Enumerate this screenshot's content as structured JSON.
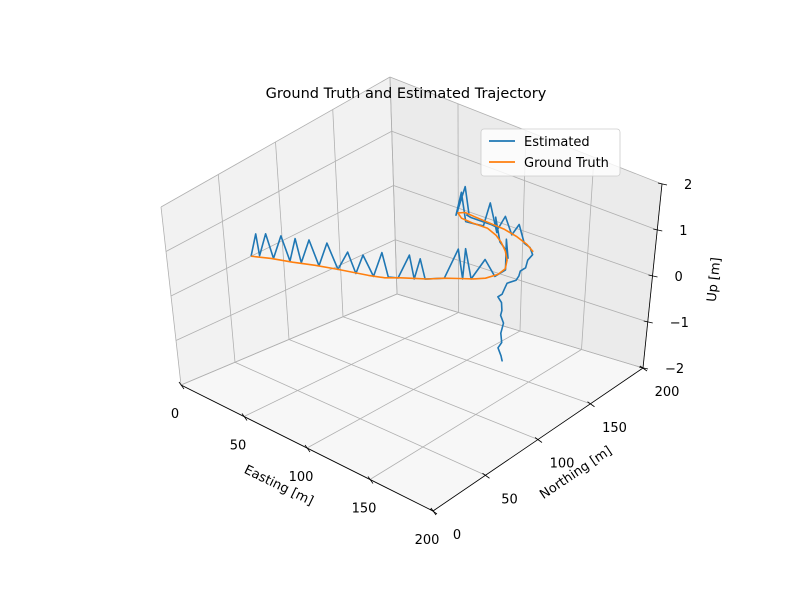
{
  "chart_data": {
    "type": "line",
    "projection": "3d",
    "title": "Ground Truth and Estimated Trajectory",
    "xlabel": "Easting [m]",
    "ylabel": "Northing [m]",
    "zlabel": "Up [m]",
    "xlim": [
      0,
      200
    ],
    "ylim": [
      0,
      200
    ],
    "zlim": [
      -2,
      2
    ],
    "x_ticks": [
      "0",
      "50",
      "100",
      "150",
      "200"
    ],
    "y_ticks": [
      "0",
      "50",
      "100",
      "150",
      "200"
    ],
    "z_ticks": [
      "−2",
      "−1",
      "0",
      "1",
      "2"
    ],
    "grid": true,
    "legend_position": "upper right",
    "series": [
      {
        "name": "Estimated",
        "color": "#1f77b4",
        "points": [
          [
            0,
            72,
            0
          ],
          [
            4,
            73,
            0.5
          ],
          [
            3,
            76,
            0
          ],
          [
            8,
            77,
            0.5
          ],
          [
            11,
            79,
            0
          ],
          [
            16,
            81,
            0.5
          ],
          [
            20,
            83,
            0
          ],
          [
            24,
            84,
            0.5
          ],
          [
            26,
            86,
            0
          ],
          [
            31,
            88,
            0.5
          ],
          [
            36,
            90,
            0
          ],
          [
            41,
            92,
            0.5
          ],
          [
            47,
            94,
            0
          ],
          [
            53,
            96,
            0.4
          ],
          [
            58,
            97,
            0
          ],
          [
            62,
            99,
            0.4
          ],
          [
            68,
            101,
            0
          ],
          [
            72,
            104,
            0.5
          ],
          [
            75,
            106,
            0
          ],
          [
            80,
            109,
            0
          ],
          [
            86,
            112,
            0.5
          ],
          [
            88,
            114,
            0
          ],
          [
            90,
            117,
            0.4
          ],
          [
            93,
            118,
            0
          ],
          [
            101,
            126,
            0
          ],
          [
            107,
            131,
            0.6
          ],
          [
            110,
            132,
            0
          ],
          [
            110,
            134,
            0.6
          ],
          [
            114,
            135,
            0
          ],
          [
            120,
            140,
            0.4
          ],
          [
            123,
            146,
            0
          ],
          [
            123,
            156,
            0
          ],
          [
            118,
            162,
            0.5
          ],
          [
            115,
            168,
            0
          ],
          [
            109,
            174,
            0
          ],
          [
            103,
            178,
            0
          ],
          [
            98,
            181,
            0
          ],
          [
            92,
            184,
            0.4
          ],
          [
            89,
            189,
            0
          ],
          [
            82,
            191,
            0.5
          ],
          [
            77,
            191,
            0
          ],
          [
            72,
            190,
            0
          ],
          [
            65,
            189,
            0
          ],
          [
            60,
            191,
            0.5
          ],
          [
            55,
            192,
            0
          ],
          [
            52,
            197,
            0
          ],
          [
            57,
            198,
            0.5
          ],
          [
            59,
            199,
            0
          ],
          [
            60,
            196,
            0
          ],
          [
            64,
            195,
            0
          ],
          [
            73,
            195,
            0
          ],
          [
            80,
            195,
            0
          ],
          [
            86,
            194,
            0
          ],
          [
            92,
            193,
            0.3
          ],
          [
            98,
            192,
            0
          ],
          [
            105,
            190,
            0.3
          ],
          [
            111,
            188,
            0
          ],
          [
            117,
            186,
            0
          ],
          [
            124,
            180,
            0
          ],
          [
            126,
            173,
            0
          ],
          [
            131,
            165,
            0
          ],
          [
            131,
            160,
            0
          ],
          [
            134,
            155,
            0
          ],
          [
            136,
            150,
            0
          ],
          [
            134,
            144,
            0
          ],
          [
            137,
            138,
            0
          ],
          [
            140,
            132,
            0
          ],
          [
            140,
            128,
            0
          ],
          [
            146,
            124,
            0
          ],
          [
            152,
            117,
            0
          ],
          [
            155,
            112,
            0
          ],
          [
            162,
            106,
            0
          ],
          [
            168,
            96,
            0
          ],
          [
            175,
            88,
            0
          ],
          [
            177,
            82,
            0
          ],
          [
            184,
            76,
            0
          ],
          [
            188,
            72,
            0
          ],
          [
            186,
            74,
            0
          ]
        ]
      },
      {
        "name": "Ground Truth",
        "color": "#ff7f0e",
        "points": [
          [
            0,
            72,
            0
          ],
          [
            10,
            78,
            0
          ],
          [
            22,
            83,
            0
          ],
          [
            34,
            89,
            0
          ],
          [
            47,
            94,
            0
          ],
          [
            56,
            97,
            0
          ],
          [
            65,
            100,
            0
          ],
          [
            74,
            104,
            0
          ],
          [
            81,
            110,
            0
          ],
          [
            88,
            115,
            0
          ],
          [
            94,
            119,
            0
          ],
          [
            101,
            126,
            0
          ],
          [
            108,
            131,
            0
          ],
          [
            115,
            136,
            0
          ],
          [
            120,
            141,
            0
          ],
          [
            123,
            149,
            0
          ],
          [
            122,
            157,
            0
          ],
          [
            116,
            166,
            0
          ],
          [
            108,
            174,
            0
          ],
          [
            99,
            181,
            0
          ],
          [
            91,
            186,
            0
          ],
          [
            81,
            190,
            0
          ],
          [
            70,
            190,
            0
          ],
          [
            60,
            191,
            0
          ],
          [
            54,
            195,
            0
          ],
          [
            57,
            198,
            0
          ],
          [
            66,
            197,
            0
          ],
          [
            78,
            196,
            0
          ],
          [
            90,
            195,
            0
          ],
          [
            102,
            192,
            0
          ],
          [
            113,
            188,
            0
          ],
          [
            122,
            183,
            0
          ]
        ]
      }
    ]
  }
}
